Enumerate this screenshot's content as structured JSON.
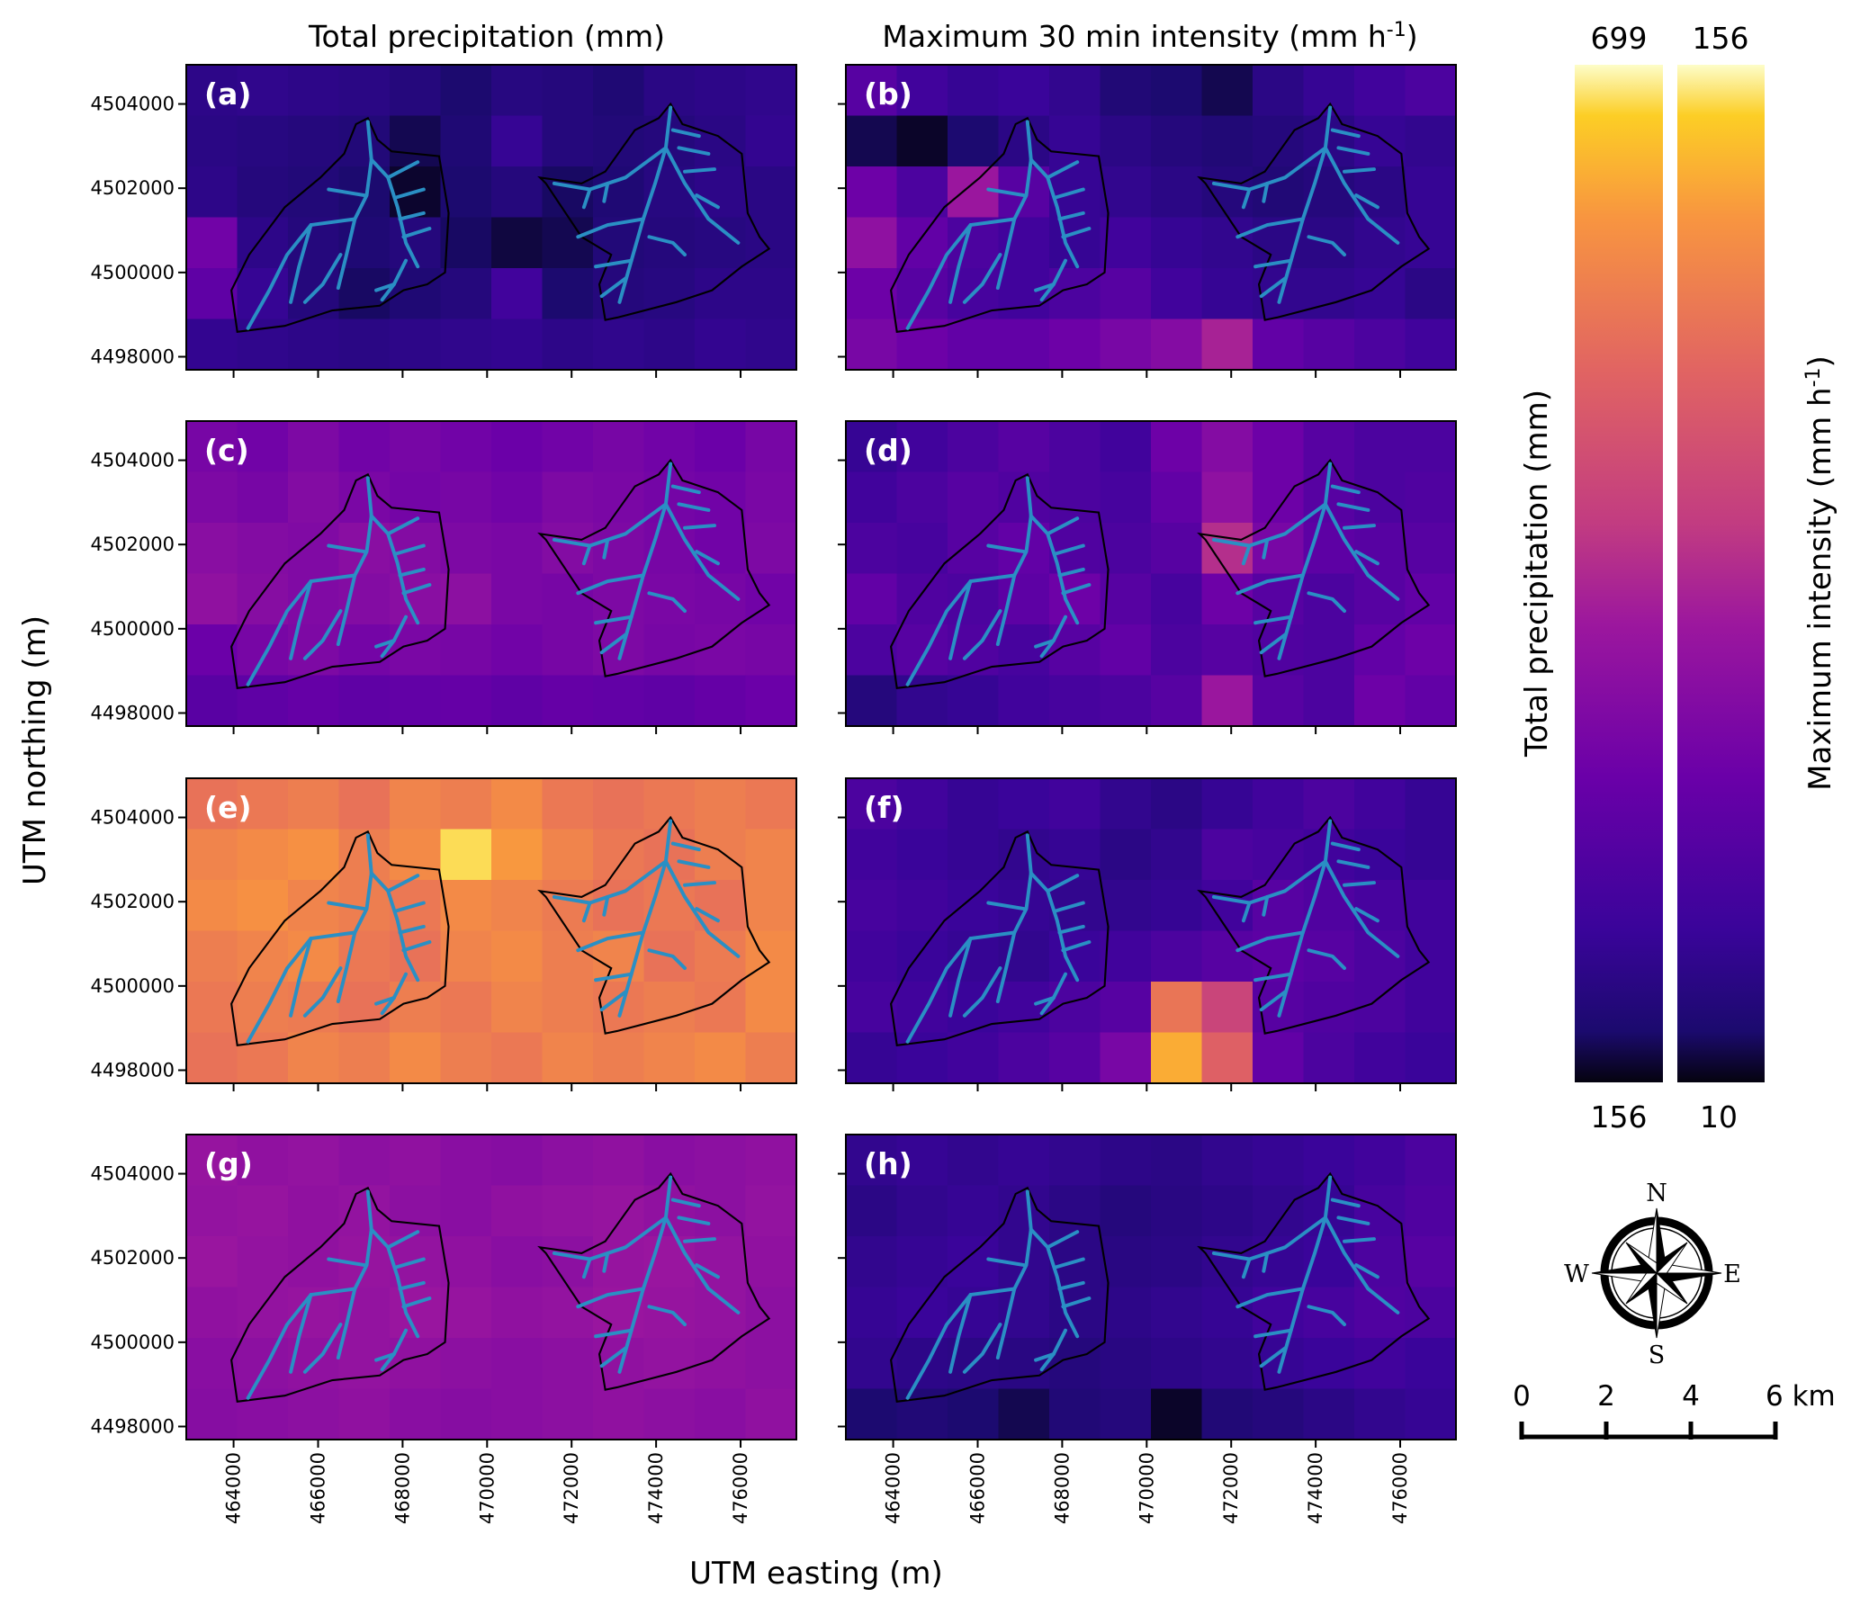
{
  "titles": {
    "left": "Total precipitation (mm)",
    "right_prefix": "Maximum 30 min intensity (mm h",
    "right_sup": "-1",
    "right_suffix": ")"
  },
  "axes": {
    "xlabel": "UTM easting (m)",
    "ylabel": "UTM northing (m)"
  },
  "chart_data": {
    "type": "heatmap",
    "title": "Total precipitation and maximum 30 min intensity maps",
    "xlabel": "UTM easting (m)",
    "ylabel": "UTM northing (m)",
    "xlim": [
      462880,
      477320
    ],
    "ylim": [
      4497690,
      4504930
    ],
    "xticks": [
      464000,
      466000,
      468000,
      470000,
      472000,
      474000,
      476000
    ],
    "yticks": [
      4498000,
      4500000,
      4502000,
      4504000
    ],
    "grid_rows": 6,
    "grid_cols": 12,
    "colorbars": [
      {
        "name": "precipitation",
        "label": "Total precipitation (mm)",
        "min": 156,
        "max": 699,
        "min_label": "156",
        "max_label": "699"
      },
      {
        "name": "intensity",
        "label_prefix": "Maximum intensity (mm h",
        "label_sup": "-1",
        "label_suffix": ")",
        "min": 10,
        "max": 156,
        "min_label": "10",
        "max_label": "156"
      }
    ],
    "colormap": "plasma",
    "panels": [
      {
        "label": "(a)",
        "variable": "precipitation",
        "grid": [
          [
            215,
            220,
            215,
            210,
            200,
            185,
            205,
            200,
            190,
            210,
            215,
            220
          ],
          [
            210,
            205,
            200,
            195,
            175,
            190,
            230,
            200,
            195,
            200,
            210,
            225
          ],
          [
            215,
            200,
            195,
            185,
            165,
            185,
            200,
            180,
            190,
            205,
            215,
            210
          ],
          [
            330,
            215,
            200,
            190,
            200,
            180,
            170,
            175,
            195,
            200,
            205,
            210
          ],
          [
            300,
            230,
            200,
            180,
            190,
            200,
            250,
            185,
            200,
            205,
            215,
            215
          ],
          [
            225,
            220,
            215,
            210,
            215,
            220,
            225,
            215,
            220,
            215,
            225,
            220
          ]
        ]
      },
      {
        "label": "(b)",
        "variable": "intensity",
        "grid": [
          [
            45,
            35,
            30,
            32,
            28,
            20,
            18,
            15,
            25,
            30,
            35,
            40
          ],
          [
            15,
            12,
            18,
            25,
            30,
            25,
            22,
            20,
            22,
            25,
            30,
            28
          ],
          [
            55,
            40,
            75,
            45,
            30,
            28,
            25,
            22,
            20,
            22,
            25,
            30
          ],
          [
            70,
            50,
            40,
            35,
            30,
            35,
            30,
            28,
            25,
            25,
            28,
            30
          ],
          [
            55,
            45,
            38,
            35,
            40,
            45,
            35,
            30,
            28,
            28,
            30,
            25
          ],
          [
            60,
            55,
            50,
            50,
            55,
            60,
            65,
            80,
            50,
            45,
            40,
            35
          ]
        ]
      },
      {
        "label": "(c)",
        "variable": "precipitation",
        "grid": [
          [
            340,
            330,
            350,
            330,
            340,
            330,
            320,
            330,
            340,
            330,
            320,
            340
          ],
          [
            350,
            340,
            360,
            345,
            335,
            340,
            330,
            350,
            345,
            335,
            330,
            345
          ],
          [
            370,
            360,
            355,
            370,
            360,
            350,
            345,
            360,
            350,
            340,
            330,
            350
          ],
          [
            380,
            365,
            355,
            360,
            370,
            375,
            345,
            340,
            350,
            345,
            340,
            330
          ],
          [
            320,
            340,
            350,
            335,
            345,
            340,
            330,
            340,
            350,
            340,
            345,
            340
          ],
          [
            290,
            300,
            310,
            300,
            305,
            310,
            300,
            310,
            305,
            300,
            310,
            320
          ]
        ]
      },
      {
        "label": "(d)",
        "variable": "intensity",
        "grid": [
          [
            30,
            35,
            40,
            45,
            40,
            35,
            55,
            65,
            55,
            45,
            40,
            40
          ],
          [
            35,
            40,
            45,
            42,
            40,
            38,
            50,
            70,
            55,
            45,
            40,
            42
          ],
          [
            40,
            38,
            45,
            50,
            42,
            40,
            45,
            85,
            60,
            48,
            45,
            45
          ],
          [
            50,
            42,
            40,
            48,
            55,
            45,
            38,
            55,
            45,
            40,
            45,
            50
          ],
          [
            40,
            45,
            42,
            38,
            45,
            50,
            40,
            45,
            42,
            40,
            50,
            55
          ],
          [
            22,
            28,
            30,
            35,
            38,
            40,
            45,
            75,
            45,
            40,
            55,
            50
          ]
        ]
      },
      {
        "label": "(e)",
        "variable": "precipitation",
        "grid": [
          [
            560,
            570,
            580,
            560,
            590,
            580,
            600,
            570,
            560,
            570,
            580,
            570
          ],
          [
            590,
            600,
            610,
            580,
            600,
            680,
            620,
            590,
            570,
            560,
            580,
            590
          ],
          [
            600,
            610,
            590,
            580,
            570,
            600,
            590,
            575,
            560,
            570,
            560,
            590
          ],
          [
            580,
            590,
            600,
            570,
            560,
            590,
            600,
            580,
            590,
            560,
            575,
            600
          ],
          [
            570,
            580,
            575,
            560,
            580,
            570,
            590,
            580,
            570,
            580,
            570,
            600
          ],
          [
            560,
            570,
            590,
            580,
            600,
            580,
            570,
            590,
            580,
            590,
            600,
            580
          ]
        ]
      },
      {
        "label": "(f)",
        "variable": "intensity",
        "grid": [
          [
            40,
            35,
            30,
            32,
            35,
            28,
            25,
            30,
            35,
            40,
            35,
            30
          ],
          [
            35,
            32,
            30,
            28,
            30,
            25,
            28,
            40,
            38,
            35,
            32,
            30
          ],
          [
            38,
            35,
            32,
            30,
            28,
            28,
            30,
            35,
            45,
            42,
            38,
            35
          ],
          [
            35,
            32,
            30,
            28,
            32,
            35,
            40,
            45,
            48,
            45,
            40,
            35
          ],
          [
            38,
            35,
            32,
            35,
            40,
            45,
            120,
            95,
            45,
            42,
            40,
            35
          ],
          [
            30,
            32,
            35,
            40,
            45,
            60,
            140,
            110,
            50,
            40,
            35,
            32
          ]
        ]
      },
      {
        "label": "(g)",
        "variable": "precipitation",
        "grid": [
          [
            390,
            380,
            385,
            375,
            380,
            370,
            365,
            375,
            380,
            370,
            375,
            380
          ],
          [
            385,
            390,
            380,
            385,
            375,
            370,
            380,
            385,
            390,
            380,
            375,
            385
          ],
          [
            395,
            385,
            380,
            390,
            385,
            380,
            370,
            375,
            390,
            395,
            385,
            380
          ],
          [
            380,
            385,
            390,
            385,
            395,
            390,
            380,
            385,
            395,
            390,
            385,
            375
          ],
          [
            370,
            375,
            380,
            385,
            380,
            375,
            370,
            375,
            380,
            385,
            380,
            375
          ],
          [
            365,
            370,
            375,
            380,
            370,
            365,
            370,
            375,
            380,
            375,
            370,
            380
          ]
        ]
      },
      {
        "label": "(h)",
        "variable": "intensity",
        "grid": [
          [
            28,
            30,
            28,
            30,
            28,
            26,
            25,
            28,
            30,
            32,
            35,
            40
          ],
          [
            25,
            28,
            30,
            28,
            25,
            22,
            24,
            26,
            28,
            30,
            38,
            42
          ],
          [
            28,
            30,
            32,
            28,
            25,
            24,
            25,
            28,
            30,
            32,
            40,
            45
          ],
          [
            30,
            32,
            30,
            28,
            25,
            26,
            28,
            30,
            35,
            38,
            42,
            40
          ],
          [
            28,
            26,
            25,
            24,
            22,
            24,
            26,
            28,
            30,
            32,
            35,
            32
          ],
          [
            18,
            20,
            18,
            15,
            20,
            22,
            12,
            20,
            22,
            25,
            28,
            30
          ]
        ]
      }
    ]
  },
  "compass": {
    "north": "N",
    "east": "E",
    "south": "S",
    "west": "W"
  },
  "scalebar": {
    "labels": [
      "0",
      "2",
      "4",
      "6 km"
    ]
  },
  "colors": {
    "catchment_outline": "#000000",
    "stream": "#2a8fc4",
    "panel_label": "#ffffff"
  }
}
